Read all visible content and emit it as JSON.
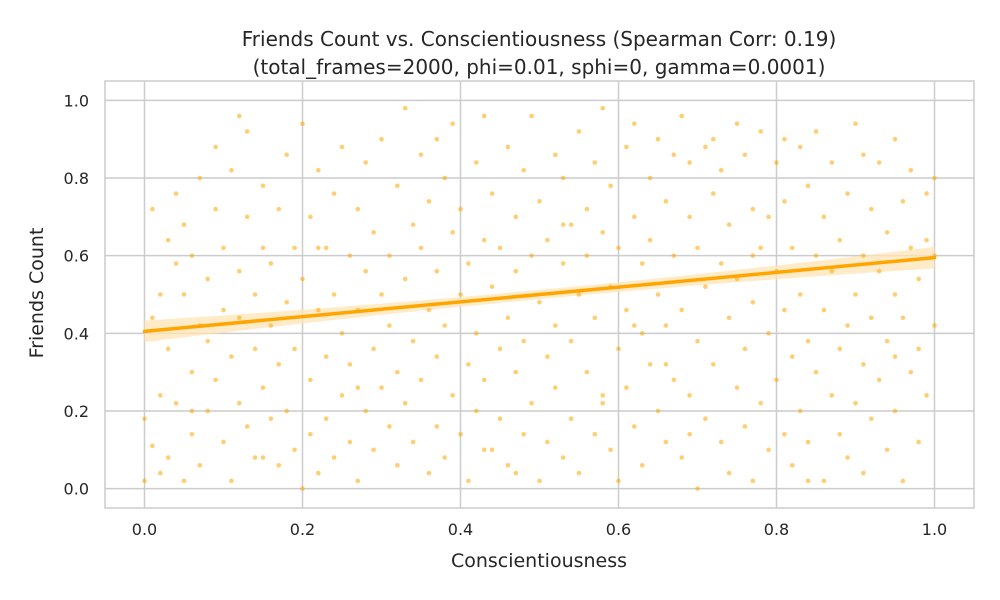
{
  "chart_data": {
    "type": "scatter",
    "title": "Friends Count vs. Conscientiousness (Spearman Corr: 0.19)",
    "subtitle": "(total_frames=2000, phi=0.01, sphi=0, gamma=0.0001)",
    "xlabel": "Conscientiousness",
    "ylabel": "Friends Count",
    "xlim": [
      -0.05,
      1.05
    ],
    "ylim": [
      -0.05,
      1.05
    ],
    "xticks": [
      0.0,
      0.2,
      0.4,
      0.6,
      0.8,
      1.0
    ],
    "xtick_labels": [
      "0.0",
      "0.2",
      "0.4",
      "0.6",
      "0.8",
      "1.0"
    ],
    "yticks": [
      0.0,
      0.2,
      0.4,
      0.6,
      0.8,
      1.0
    ],
    "ytick_labels": [
      "0.0",
      "0.2",
      "0.4",
      "0.6",
      "0.8",
      "1.0"
    ],
    "grid": true,
    "point_color": "#ffa500",
    "line_color": "#ffa500",
    "band_color": "#ffe4b5",
    "regression": {
      "slope": 0.19,
      "intercept": 0.405,
      "ci_halfwidth_ends": 0.028,
      "ci_halfwidth_mid": 0.012
    },
    "points": [
      [
        0.0,
        0.02
      ],
      [
        0.0,
        0.18
      ],
      [
        0.01,
        0.44
      ],
      [
        0.01,
        0.11
      ],
      [
        0.01,
        0.72
      ],
      [
        0.02,
        0.24
      ],
      [
        0.02,
        0.5
      ],
      [
        0.02,
        0.04
      ],
      [
        0.03,
        0.64
      ],
      [
        0.03,
        0.36
      ],
      [
        0.03,
        0.08
      ],
      [
        0.04,
        0.58
      ],
      [
        0.04,
        0.76
      ],
      [
        0.04,
        0.22
      ],
      [
        0.05,
        0.5
      ],
      [
        0.05,
        0.02
      ],
      [
        0.05,
        0.68
      ],
      [
        0.06,
        0.3
      ],
      [
        0.06,
        0.14
      ],
      [
        0.06,
        0.6
      ],
      [
        0.07,
        0.42
      ],
      [
        0.07,
        0.8
      ],
      [
        0.07,
        0.06
      ],
      [
        0.08,
        0.38
      ],
      [
        0.08,
        0.54
      ],
      [
        0.08,
        0.2
      ],
      [
        0.09,
        0.72
      ],
      [
        0.09,
        0.88
      ],
      [
        0.09,
        0.28
      ],
      [
        0.1,
        0.46
      ],
      [
        0.1,
        0.12
      ],
      [
        0.1,
        0.62
      ],
      [
        0.11,
        0.34
      ],
      [
        0.11,
        0.82
      ],
      [
        0.11,
        0.02
      ],
      [
        0.12,
        0.56
      ],
      [
        0.12,
        0.22
      ],
      [
        0.12,
        0.44
      ],
      [
        0.13,
        0.7
      ],
      [
        0.13,
        0.16
      ],
      [
        0.13,
        0.92
      ],
      [
        0.14,
        0.36
      ],
      [
        0.14,
        0.5
      ],
      [
        0.14,
        0.08
      ],
      [
        0.15,
        0.62
      ],
      [
        0.15,
        0.26
      ],
      [
        0.15,
        0.78
      ],
      [
        0.16,
        0.42
      ],
      [
        0.16,
        0.18
      ],
      [
        0.16,
        0.58
      ],
      [
        0.17,
        0.32
      ],
      [
        0.17,
        0.72
      ],
      [
        0.17,
        0.06
      ],
      [
        0.18,
        0.48
      ],
      [
        0.18,
        0.2
      ],
      [
        0.18,
        0.86
      ],
      [
        0.19,
        0.62
      ],
      [
        0.19,
        0.1
      ],
      [
        0.19,
        0.36
      ],
      [
        0.2,
        0.0
      ],
      [
        0.2,
        0.54
      ],
      [
        0.2,
        0.94
      ],
      [
        0.21,
        0.28
      ],
      [
        0.21,
        0.7
      ],
      [
        0.21,
        0.14
      ],
      [
        0.22,
        0.46
      ],
      [
        0.22,
        0.82
      ],
      [
        0.22,
        0.04
      ],
      [
        0.23,
        0.62
      ],
      [
        0.23,
        0.34
      ],
      [
        0.23,
        0.18
      ],
      [
        0.24,
        0.76
      ],
      [
        0.24,
        0.5
      ],
      [
        0.24,
        0.08
      ],
      [
        0.25,
        0.4
      ],
      [
        0.25,
        0.88
      ],
      [
        0.25,
        0.24
      ],
      [
        0.26,
        0.6
      ],
      [
        0.26,
        0.12
      ],
      [
        0.26,
        0.32
      ],
      [
        0.27,
        0.72
      ],
      [
        0.27,
        0.46
      ],
      [
        0.27,
        0.02
      ],
      [
        0.28,
        0.56
      ],
      [
        0.28,
        0.2
      ],
      [
        0.28,
        0.84
      ],
      [
        0.29,
        0.36
      ],
      [
        0.29,
        0.66
      ],
      [
        0.29,
        0.1
      ],
      [
        0.3,
        0.5
      ],
      [
        0.3,
        0.9
      ],
      [
        0.3,
        0.26
      ],
      [
        0.31,
        0.6
      ],
      [
        0.31,
        0.16
      ],
      [
        0.31,
        0.42
      ],
      [
        0.32,
        0.78
      ],
      [
        0.32,
        0.3
      ],
      [
        0.32,
        0.06
      ],
      [
        0.33,
        0.54
      ],
      [
        0.33,
        0.98
      ],
      [
        0.33,
        0.22
      ],
      [
        0.34,
        0.68
      ],
      [
        0.34,
        0.38
      ],
      [
        0.34,
        0.12
      ],
      [
        0.35,
        0.62
      ],
      [
        0.35,
        0.86
      ],
      [
        0.35,
        0.28
      ],
      [
        0.36,
        0.46
      ],
      [
        0.36,
        0.04
      ],
      [
        0.36,
        0.74
      ],
      [
        0.37,
        0.34
      ],
      [
        0.37,
        0.56
      ],
      [
        0.37,
        0.16
      ],
      [
        0.38,
        0.8
      ],
      [
        0.38,
        0.42
      ],
      [
        0.38,
        0.08
      ],
      [
        0.39,
        0.66
      ],
      [
        0.39,
        0.24
      ],
      [
        0.39,
        0.94
      ],
      [
        0.4,
        0.5
      ],
      [
        0.4,
        0.14
      ],
      [
        0.4,
        0.72
      ],
      [
        0.41,
        0.32
      ],
      [
        0.41,
        0.58
      ],
      [
        0.41,
        0.02
      ],
      [
        0.42,
        0.84
      ],
      [
        0.42,
        0.4
      ],
      [
        0.42,
        0.2
      ],
      [
        0.43,
        0.64
      ],
      [
        0.43,
        0.96
      ],
      [
        0.43,
        0.28
      ],
      [
        0.44,
        0.52
      ],
      [
        0.44,
        0.1
      ],
      [
        0.44,
        0.76
      ],
      [
        0.45,
        0.36
      ],
      [
        0.45,
        0.62
      ],
      [
        0.45,
        0.18
      ],
      [
        0.46,
        0.88
      ],
      [
        0.46,
        0.44
      ],
      [
        0.46,
        0.06
      ],
      [
        0.47,
        0.7
      ],
      [
        0.47,
        0.3
      ],
      [
        0.47,
        0.56
      ],
      [
        0.48,
        0.14
      ],
      [
        0.48,
        0.82
      ],
      [
        0.48,
        0.38
      ],
      [
        0.49,
        0.6
      ],
      [
        0.49,
        0.22
      ],
      [
        0.49,
        0.96
      ],
      [
        0.5,
        0.48
      ],
      [
        0.5,
        0.02
      ],
      [
        0.5,
        0.74
      ],
      [
        0.51,
        0.34
      ],
      [
        0.51,
        0.64
      ],
      [
        0.51,
        0.12
      ],
      [
        0.52,
        0.86
      ],
      [
        0.52,
        0.42
      ],
      [
        0.52,
        0.26
      ],
      [
        0.53,
        0.58
      ],
      [
        0.53,
        0.08
      ],
      [
        0.53,
        0.8
      ],
      [
        0.54,
        0.38
      ],
      [
        0.54,
        0.68
      ],
      [
        0.54,
        0.18
      ],
      [
        0.55,
        0.92
      ],
      [
        0.55,
        0.5
      ],
      [
        0.55,
        0.04
      ],
      [
        0.56,
        0.72
      ],
      [
        0.56,
        0.3
      ],
      [
        0.56,
        0.6
      ],
      [
        0.57,
        0.14
      ],
      [
        0.57,
        0.84
      ],
      [
        0.57,
        0.44
      ],
      [
        0.58,
        0.66
      ],
      [
        0.58,
        0.22
      ],
      [
        0.58,
        0.98
      ],
      [
        0.59,
        0.52
      ],
      [
        0.59,
        0.1
      ],
      [
        0.59,
        0.78
      ],
      [
        0.6,
        0.36
      ],
      [
        0.6,
        0.62
      ],
      [
        0.6,
        0.02
      ],
      [
        0.61,
        0.88
      ],
      [
        0.61,
        0.46
      ],
      [
        0.61,
        0.26
      ],
      [
        0.62,
        0.7
      ],
      [
        0.62,
        0.16
      ],
      [
        0.62,
        0.94
      ],
      [
        0.63,
        0.4
      ],
      [
        0.63,
        0.58
      ],
      [
        0.63,
        0.06
      ],
      [
        0.64,
        0.8
      ],
      [
        0.64,
        0.32
      ],
      [
        0.64,
        0.64
      ],
      [
        0.65,
        0.2
      ],
      [
        0.65,
        0.9
      ],
      [
        0.65,
        0.5
      ],
      [
        0.66,
        0.74
      ],
      [
        0.66,
        0.12
      ],
      [
        0.66,
        0.42
      ],
      [
        0.67,
        0.86
      ],
      [
        0.67,
        0.28
      ],
      [
        0.67,
        0.6
      ],
      [
        0.68,
        0.08
      ],
      [
        0.68,
        0.96
      ],
      [
        0.68,
        0.46
      ],
      [
        0.69,
        0.7
      ],
      [
        0.69,
        0.24
      ],
      [
        0.69,
        0.84
      ],
      [
        0.7,
        0.38
      ],
      [
        0.7,
        0.0
      ],
      [
        0.7,
        0.62
      ],
      [
        0.71,
        0.88
      ],
      [
        0.71,
        0.18
      ],
      [
        0.71,
        0.52
      ],
      [
        0.72,
        0.76
      ],
      [
        0.72,
        0.32
      ],
      [
        0.72,
        0.9
      ],
      [
        0.73,
        0.12
      ],
      [
        0.73,
        0.58
      ],
      [
        0.73,
        0.82
      ],
      [
        0.74,
        0.44
      ],
      [
        0.74,
        0.04
      ],
      [
        0.74,
        0.68
      ],
      [
        0.75,
        0.94
      ],
      [
        0.75,
        0.26
      ],
      [
        0.75,
        0.54
      ],
      [
        0.76,
        0.86
      ],
      [
        0.76,
        0.36
      ],
      [
        0.76,
        0.16
      ],
      [
        0.77,
        0.72
      ],
      [
        0.77,
        0.48
      ],
      [
        0.77,
        0.02
      ],
      [
        0.78,
        0.62
      ],
      [
        0.78,
        0.22
      ],
      [
        0.78,
        0.92
      ],
      [
        0.79,
        0.4
      ],
      [
        0.79,
        0.1
      ],
      [
        0.79,
        0.7
      ],
      [
        0.8,
        0.56
      ],
      [
        0.8,
        0.28
      ],
      [
        0.8,
        0.84
      ],
      [
        0.81,
        0.14
      ],
      [
        0.81,
        0.46
      ],
      [
        0.81,
        0.74
      ],
      [
        0.82,
        0.34
      ],
      [
        0.82,
        0.06
      ],
      [
        0.82,
        0.62
      ],
      [
        0.83,
        0.88
      ],
      [
        0.83,
        0.2
      ],
      [
        0.83,
        0.5
      ],
      [
        0.84,
        0.78
      ],
      [
        0.84,
        0.38
      ],
      [
        0.84,
        0.12
      ],
      [
        0.85,
        0.6
      ],
      [
        0.85,
        0.3
      ],
      [
        0.85,
        0.92
      ],
      [
        0.86,
        0.46
      ],
      [
        0.86,
        0.02
      ],
      [
        0.86,
        0.7
      ],
      [
        0.87,
        0.24
      ],
      [
        0.87,
        0.56
      ],
      [
        0.87,
        0.84
      ],
      [
        0.88,
        0.36
      ],
      [
        0.88,
        0.14
      ],
      [
        0.88,
        0.64
      ],
      [
        0.89,
        0.42
      ],
      [
        0.89,
        0.08
      ],
      [
        0.89,
        0.76
      ],
      [
        0.9,
        0.5
      ],
      [
        0.9,
        0.22
      ],
      [
        0.9,
        0.94
      ],
      [
        0.91,
        0.32
      ],
      [
        0.91,
        0.6
      ],
      [
        0.91,
        0.04
      ],
      [
        0.92,
        0.72
      ],
      [
        0.92,
        0.44
      ],
      [
        0.92,
        0.18
      ],
      [
        0.93,
        0.84
      ],
      [
        0.93,
        0.28
      ],
      [
        0.93,
        0.56
      ],
      [
        0.94,
        0.1
      ],
      [
        0.94,
        0.66
      ],
      [
        0.94,
        0.38
      ],
      [
        0.95,
        0.9
      ],
      [
        0.95,
        0.2
      ],
      [
        0.95,
        0.5
      ],
      [
        0.96,
        0.74
      ],
      [
        0.96,
        0.02
      ],
      [
        0.96,
        0.44
      ],
      [
        0.97,
        0.62
      ],
      [
        0.97,
        0.3
      ],
      [
        0.97,
        0.82
      ],
      [
        0.98,
        0.12
      ],
      [
        0.98,
        0.54
      ],
      [
        0.98,
        0.36
      ],
      [
        0.99,
        0.76
      ],
      [
        0.99,
        0.24
      ],
      [
        0.99,
        0.64
      ],
      [
        1.0,
        0.8
      ],
      [
        1.0,
        0.42
      ],
      [
        1.0,
        0.6
      ],
      [
        0.15,
        0.08
      ],
      [
        0.27,
        0.26
      ],
      [
        0.43,
        0.1
      ],
      [
        0.58,
        0.24
      ],
      [
        0.69,
        0.14
      ],
      [
        0.84,
        0.02
      ],
      [
        0.12,
        0.96
      ],
      [
        0.37,
        0.9
      ],
      [
        0.53,
        0.68
      ],
      [
        0.62,
        0.42
      ],
      [
        0.77,
        0.6
      ],
      [
        0.91,
        0.86
      ],
      [
        0.06,
        0.2
      ],
      [
        0.22,
        0.62
      ],
      [
        0.47,
        0.04
      ],
      [
        0.66,
        0.32
      ],
      [
        0.81,
        0.9
      ],
      [
        0.95,
        0.34
      ]
    ]
  }
}
